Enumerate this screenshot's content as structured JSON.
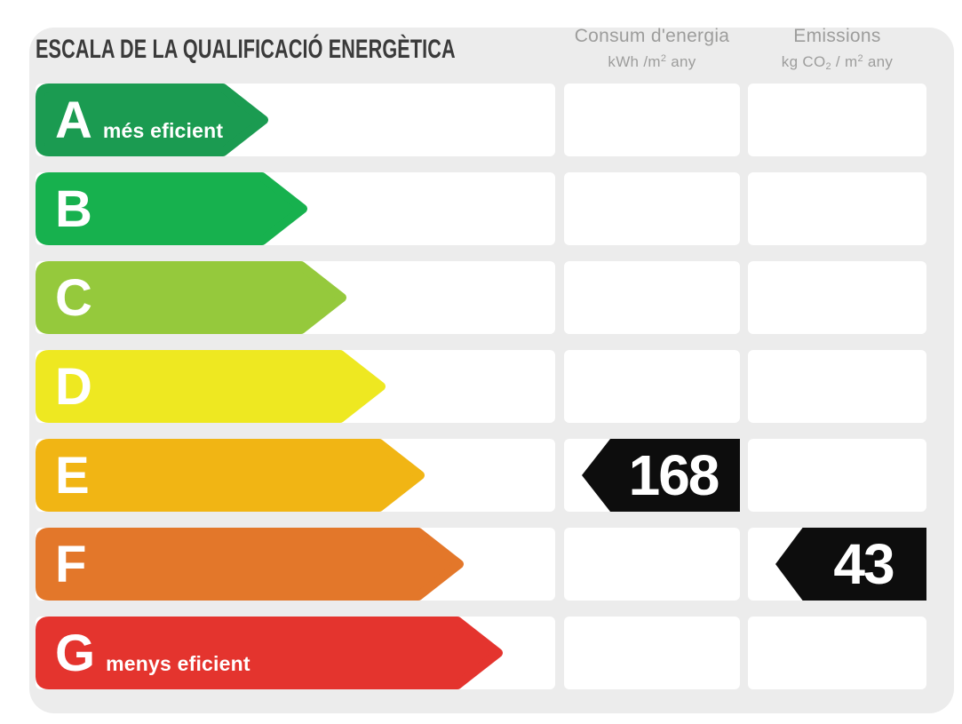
{
  "title": "ESCALA DE LA QUALIFICACIÓ ENERGÈTICA",
  "columns": {
    "consum": {
      "label": "Consum d'energia",
      "unit_pre": "kWh /m",
      "unit_sup": "2",
      "unit_post": " any"
    },
    "emissions": {
      "label": "Emissions",
      "unit_pre": "kg CO",
      "unit_sub": "2",
      "unit_mid": " / m",
      "unit_sup": "2",
      "unit_post": " any"
    }
  },
  "scale": {
    "rows": [
      {
        "grade": "A",
        "label": "més eficient",
        "color": "#1b9b51"
      },
      {
        "grade": "B",
        "label": "",
        "color": "#17b14e"
      },
      {
        "grade": "C",
        "label": "",
        "color": "#95c93c"
      },
      {
        "grade": "D",
        "label": "",
        "color": "#eee821"
      },
      {
        "grade": "E",
        "label": "",
        "color": "#f1b514"
      },
      {
        "grade": "F",
        "label": "",
        "color": "#e3772a"
      },
      {
        "grade": "G",
        "label": "menys eficient",
        "color": "#e4342e"
      }
    ]
  },
  "ratings": {
    "consum": {
      "value": "168",
      "grade": "E",
      "row_index": 4
    },
    "emissions": {
      "value": "43",
      "grade": "F",
      "row_index": 5
    }
  },
  "theme": {
    "panel_bg": "#ececec",
    "cell_bg": "#ffffff",
    "marker_bg": "#0d0d0d",
    "title_color": "#3a3a3a",
    "header_color": "#9d9d9c",
    "text_on_arrow": "#ffffff"
  },
  "chart_data": {
    "type": "bar",
    "title": "ESCALA DE LA QUALIFICACIÓ ENERGÈTICA",
    "categories": [
      "A",
      "B",
      "C",
      "D",
      "E",
      "F",
      "G"
    ],
    "category_notes": {
      "A": "més eficient",
      "G": "menys eficient"
    },
    "series": [
      {
        "name": "Consum d'energia (kWh/m2 any)",
        "grade": "E",
        "value": 168
      },
      {
        "name": "Emissions (kg CO2/m2 any)",
        "grade": "F",
        "value": 43
      }
    ],
    "legend_position": "none"
  }
}
